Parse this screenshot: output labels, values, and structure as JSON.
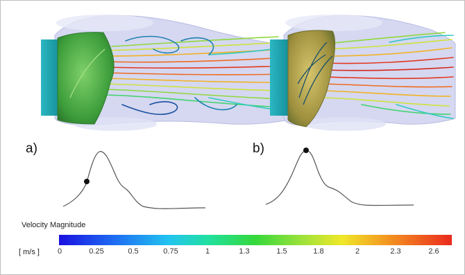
{
  "panels": [
    {
      "label": "a)"
    },
    {
      "label": "b)"
    }
  ],
  "colorbar": {
    "title": "Velocity Magnitude",
    "units": "[ m/s ]",
    "ticks": [
      "0",
      "0.25",
      "0.5",
      "0.75",
      "1",
      "1.3",
      "1.5",
      "1.8",
      "2",
      "2.3",
      "2.6"
    ],
    "range": [
      0,
      2.8
    ],
    "colors": [
      "#1a10e0",
      "#22c4f0",
      "#35d83a",
      "#f0e82a",
      "#ea2a1e"
    ]
  },
  "colors": {
    "vessel": "#cdd1ee",
    "inflow_tube": "#1aa6b0",
    "leaflet_a": "#3aa63a",
    "leaflet_b": "#b8a640",
    "waveform": "#555555"
  }
}
